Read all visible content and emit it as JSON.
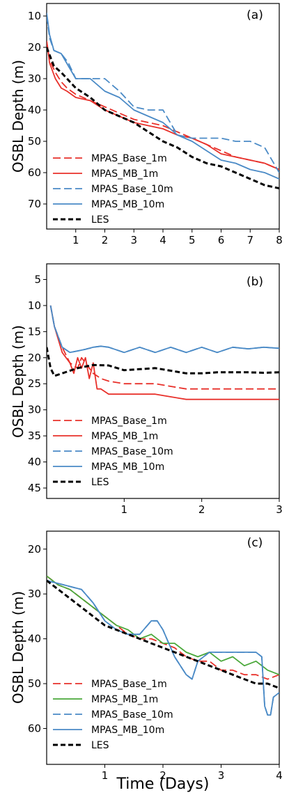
{
  "figure": {
    "xlabel": "Time (Days)"
  },
  "chart_data": [
    {
      "type": "line",
      "tag": "(a)",
      "ylabel": "OSBL Depth (m)",
      "xlim": [
        0,
        8
      ],
      "ylim": [
        78,
        6
      ],
      "y_inverted": true,
      "xticks": [
        1,
        2,
        3,
        4,
        5,
        6,
        7,
        8
      ],
      "yticks": [
        10,
        20,
        30,
        40,
        50,
        60,
        70
      ],
      "legend_position": "lower-left",
      "series": [
        {
          "name": "MPAS_Base_1m",
          "color": "#e8302a",
          "dash": "dashed",
          "x": [
            0,
            0.1,
            0.3,
            0.5,
            0.7,
            1,
            1.5,
            2,
            2.5,
            3,
            3.5,
            4,
            4.5,
            5,
            5.5,
            6,
            6.5,
            7,
            7.5,
            8
          ],
          "y": [
            18,
            24,
            28,
            31,
            33,
            35,
            37,
            39,
            41,
            43,
            44,
            45,
            47,
            49,
            51,
            53,
            55,
            56,
            57,
            59
          ]
        },
        {
          "name": "MPAS_MB_1m",
          "color": "#e8302a",
          "dash": "solid",
          "x": [
            0,
            0.1,
            0.3,
            0.5,
            0.7,
            1,
            1.5,
            2,
            2.5,
            3,
            3.5,
            4,
            4.5,
            5,
            5.5,
            6,
            6.5,
            7,
            7.5,
            8
          ],
          "y": [
            18,
            25,
            30,
            33,
            34,
            36,
            37,
            40,
            42,
            44,
            45,
            46,
            48,
            49,
            51,
            54,
            55,
            56,
            57,
            59
          ]
        },
        {
          "name": "MPAS_Base_10m",
          "color": "#4a8ac6",
          "dash": "dashed",
          "x": [
            0,
            0.1,
            0.25,
            0.5,
            0.75,
            1,
            1.5,
            2,
            2.5,
            3,
            3.5,
            4,
            4.5,
            5,
            5.5,
            6,
            6.5,
            7,
            7.5,
            8
          ],
          "y": [
            10,
            17,
            21,
            22,
            25,
            30,
            30,
            30,
            34,
            39,
            40,
            40,
            48,
            49,
            49,
            49,
            50,
            50,
            52,
            60
          ]
        },
        {
          "name": "MPAS_MB_10m",
          "color": "#4a8ac6",
          "dash": "solid",
          "x": [
            0,
            0.1,
            0.25,
            0.5,
            0.75,
            1,
            1.5,
            2,
            2.5,
            3,
            3.5,
            4,
            4.5,
            5,
            5.5,
            6,
            6.5,
            7,
            7.5,
            8
          ],
          "y": [
            9,
            16,
            21,
            22,
            26,
            30,
            30,
            34,
            36,
            40,
            42,
            44,
            48,
            50,
            53,
            56,
            57,
            59,
            60,
            62
          ]
        },
        {
          "name": "LES",
          "color": "#000000",
          "dash": "dashed",
          "x": [
            0,
            0.25,
            0.5,
            1,
            1.5,
            2,
            2.5,
            3,
            3.5,
            4,
            4.5,
            5,
            5.5,
            6,
            6.5,
            7,
            7.5,
            8
          ],
          "y": [
            20,
            26,
            28,
            33,
            36,
            40,
            42,
            44,
            47,
            50,
            52,
            55,
            57,
            58,
            60,
            62,
            64,
            65
          ]
        }
      ]
    },
    {
      "type": "line",
      "tag": "(b)",
      "ylabel": "OSBL Depth (m)",
      "xlim": [
        0,
        3
      ],
      "ylim": [
        47,
        2
      ],
      "y_inverted": true,
      "xticks": [
        1,
        2,
        3
      ],
      "yticks": [
        5,
        10,
        15,
        20,
        25,
        30,
        35,
        40,
        45
      ],
      "legend_position": "lower-left",
      "series": [
        {
          "name": "MPAS_Base_1m",
          "color": "#e8302a",
          "dash": "dashed",
          "x": [
            0.05,
            0.1,
            0.2,
            0.3,
            0.4,
            0.45,
            0.5,
            0.55,
            0.6,
            0.7,
            0.8,
            1.0,
            1.2,
            1.4,
            1.6,
            1.8,
            2.0,
            2.5,
            3.0
          ],
          "y": [
            10,
            14,
            18,
            21,
            22,
            20,
            21,
            22,
            23,
            24,
            24.5,
            25,
            25,
            25,
            25.5,
            26,
            26,
            26,
            26
          ]
        },
        {
          "name": "MPAS_MB_1m",
          "color": "#e8302a",
          "dash": "solid",
          "x": [
            0.05,
            0.1,
            0.2,
            0.3,
            0.35,
            0.4,
            0.45,
            0.5,
            0.55,
            0.6,
            0.65,
            0.7,
            0.8,
            1.0,
            1.2,
            1.4,
            1.6,
            1.8,
            2.0,
            2.5,
            3.0
          ],
          "y": [
            10,
            14,
            19,
            21,
            23,
            20,
            22,
            20,
            24,
            21,
            26,
            26,
            27,
            27,
            27,
            27,
            27.5,
            28,
            28,
            28,
            28
          ]
        },
        {
          "name": "MPAS_Base_10m",
          "color": "#4a8ac6",
          "dash": "dashed",
          "x": [
            0.05,
            0.1,
            0.2,
            0.3,
            0.4,
            0.5,
            0.6,
            0.7,
            0.8,
            1.0,
            1.2,
            1.4,
            1.6,
            1.8,
            2.0,
            2.2,
            2.4,
            2.6,
            2.8,
            3.0
          ],
          "y": [
            10,
            14,
            18,
            19,
            18.7,
            18.4,
            18,
            17.8,
            18,
            19,
            18,
            19,
            18,
            19,
            18,
            19,
            18,
            18.3,
            18,
            18.2
          ]
        },
        {
          "name": "MPAS_MB_10m",
          "color": "#4a8ac6",
          "dash": "solid",
          "x": [
            0.05,
            0.1,
            0.2,
            0.3,
            0.4,
            0.5,
            0.6,
            0.7,
            0.8,
            1.0,
            1.2,
            1.4,
            1.6,
            1.8,
            2.0,
            2.2,
            2.4,
            2.6,
            2.8,
            3.0
          ],
          "y": [
            10,
            14,
            18,
            19,
            18.7,
            18.4,
            18,
            17.8,
            18,
            19,
            18,
            19,
            18,
            19,
            18,
            19,
            18,
            18.3,
            18,
            18.2
          ]
        },
        {
          "name": "LES",
          "color": "#000000",
          "dash": "dashed",
          "x": [
            0,
            0.05,
            0.1,
            0.2,
            0.4,
            0.6,
            0.8,
            1.0,
            1.2,
            1.4,
            1.6,
            1.8,
            2.0,
            2.2,
            2.4,
            2.6,
            2.8,
            3.0
          ],
          "y": [
            18,
            22,
            23.5,
            23,
            22,
            21.4,
            21.5,
            22.4,
            22.2,
            22,
            22.5,
            23,
            23,
            22.8,
            22.8,
            22.8,
            22.9,
            22.8
          ]
        }
      ]
    },
    {
      "type": "line",
      "tag": "(c)",
      "ylabel": "OSBL Depth (m)",
      "xlim": [
        0,
        4
      ],
      "ylim": [
        68,
        16
      ],
      "y_inverted": true,
      "xticks": [
        1,
        2,
        3,
        4
      ],
      "yticks": [
        20,
        30,
        40,
        50,
        60
      ],
      "legend_position": "lower-left",
      "series": [
        {
          "name": "MPAS_Base_1m",
          "color": "#e8302a",
          "dash": "dashed",
          "x": [
            0,
            0.2,
            0.4,
            0.6,
            0.8,
            1.0,
            1.2,
            1.4,
            1.6,
            1.8,
            2.0,
            2.2,
            2.4,
            2.6,
            2.8,
            3.0,
            3.2,
            3.4,
            3.6,
            3.8,
            4.0
          ],
          "y": [
            26,
            28,
            29,
            31,
            33,
            35,
            37,
            39,
            40,
            40,
            41,
            42,
            44,
            45,
            45,
            47,
            47,
            48,
            48,
            49,
            48
          ]
        },
        {
          "name": "MPAS_MB_1m",
          "color": "#4aa83a",
          "dash": "solid",
          "x": [
            0,
            0.2,
            0.4,
            0.6,
            0.8,
            1.0,
            1.2,
            1.4,
            1.6,
            1.8,
            2.0,
            2.2,
            2.4,
            2.6,
            2.8,
            3.0,
            3.2,
            3.4,
            3.6,
            3.8,
            4.0
          ],
          "y": [
            26,
            28,
            29,
            31,
            33,
            35,
            37,
            38,
            40,
            39,
            41,
            41,
            43,
            44,
            43,
            45,
            44,
            46,
            45,
            47,
            48
          ]
        },
        {
          "name": "MPAS_Base_10m",
          "color": "#4a8ac6",
          "dash": "dashed",
          "x": [
            0,
            0.3,
            0.6,
            0.8,
            1.0,
            1.2,
            1.4,
            1.6,
            1.8,
            1.9,
            2.0,
            2.2,
            2.4,
            2.5,
            2.6,
            2.8,
            3.0,
            3.2,
            3.4,
            3.6,
            3.7,
            3.75,
            3.8,
            3.85,
            3.9,
            4.0
          ],
          "y": [
            27,
            28,
            29,
            32,
            36,
            38,
            39,
            39,
            36,
            36,
            38,
            44,
            48,
            49,
            45,
            43,
            43,
            43,
            43,
            43,
            44,
            55,
            57,
            57,
            53,
            52
          ]
        },
        {
          "name": "MPAS_MB_10m",
          "color": "#4a8ac6",
          "dash": "solid",
          "x": [
            0,
            0.3,
            0.6,
            0.8,
            1.0,
            1.2,
            1.4,
            1.6,
            1.8,
            1.9,
            2.0,
            2.2,
            2.4,
            2.5,
            2.6,
            2.8,
            3.0,
            3.2,
            3.4,
            3.6,
            3.7,
            3.75,
            3.8,
            3.85,
            3.9,
            4.0
          ],
          "y": [
            27,
            28,
            29,
            32,
            36,
            38,
            39,
            39,
            36,
            36,
            38,
            44,
            48,
            49,
            45,
            43,
            43,
            43,
            43,
            43,
            44,
            55,
            57,
            57,
            53,
            52
          ]
        },
        {
          "name": "LES",
          "color": "#000000",
          "dash": "dashed",
          "x": [
            0,
            0.2,
            0.4,
            0.6,
            0.8,
            1.0,
            1.2,
            1.4,
            1.6,
            1.8,
            2.0,
            2.2,
            2.4,
            2.6,
            2.8,
            3.0,
            3.2,
            3.4,
            3.6,
            3.8,
            4.0
          ],
          "y": [
            27,
            29,
            31,
            33,
            35,
            37,
            38,
            39,
            40,
            41,
            42,
            43,
            44,
            45,
            46,
            47,
            48,
            49,
            50,
            50,
            51
          ]
        }
      ]
    }
  ]
}
